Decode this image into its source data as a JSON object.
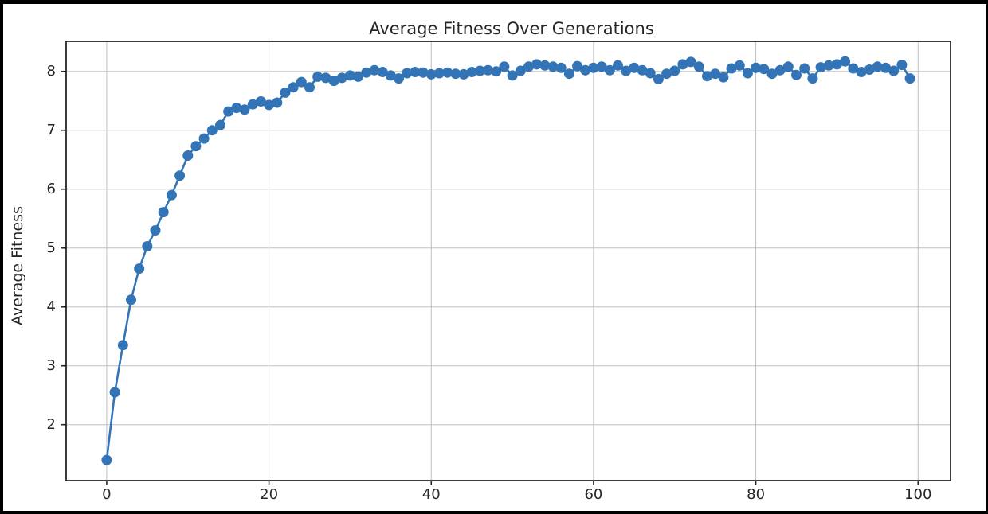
{
  "chart_data": {
    "type": "line",
    "title": "Average Fitness Over Generations",
    "xlabel": "",
    "ylabel": "Average Fitness",
    "legend": null,
    "grid": true,
    "xlim": [
      -5,
      104
    ],
    "ylim": [
      1.05,
      8.51
    ],
    "xticks": [
      0,
      20,
      40,
      60,
      80,
      100
    ],
    "yticks": [
      2,
      3,
      4,
      5,
      6,
      7,
      8
    ],
    "x": [
      0,
      1,
      2,
      3,
      4,
      5,
      6,
      7,
      8,
      9,
      10,
      11,
      12,
      13,
      14,
      15,
      16,
      17,
      18,
      19,
      20,
      21,
      22,
      23,
      24,
      25,
      26,
      27,
      28,
      29,
      30,
      31,
      32,
      33,
      34,
      35,
      36,
      37,
      38,
      39,
      40,
      41,
      42,
      43,
      44,
      45,
      46,
      47,
      48,
      49,
      50,
      51,
      52,
      53,
      54,
      55,
      56,
      57,
      58,
      59,
      60,
      61,
      62,
      63,
      64,
      65,
      66,
      67,
      68,
      69,
      70,
      71,
      72,
      73,
      74,
      75,
      76,
      77,
      78,
      79,
      80,
      81,
      82,
      83,
      84,
      85,
      86,
      87,
      88,
      89,
      90,
      91,
      92,
      93,
      94,
      95,
      96,
      97,
      98,
      99
    ],
    "series": [
      {
        "name": "average_fitness",
        "values": [
          1.4,
          2.55,
          3.35,
          4.12,
          4.65,
          5.03,
          5.3,
          5.61,
          5.9,
          6.23,
          6.57,
          6.73,
          6.86,
          7.0,
          7.09,
          7.32,
          7.38,
          7.35,
          7.44,
          7.49,
          7.43,
          7.47,
          7.64,
          7.73,
          7.82,
          7.73,
          7.91,
          7.89,
          7.84,
          7.89,
          7.93,
          7.91,
          7.98,
          8.02,
          7.99,
          7.93,
          7.88,
          7.97,
          7.99,
          7.98,
          7.95,
          7.97,
          7.98,
          7.96,
          7.95,
          7.99,
          8.01,
          8.02,
          8.0,
          8.08,
          7.93,
          8.01,
          8.08,
          8.12,
          8.1,
          8.08,
          8.06,
          7.96,
          8.09,
          8.02,
          8.06,
          8.08,
          8.02,
          8.1,
          8.01,
          8.06,
          8.02,
          7.97,
          7.87,
          7.96,
          8.01,
          8.12,
          8.16,
          8.08,
          7.92,
          7.96,
          7.9,
          8.05,
          8.1,
          7.97,
          8.06,
          8.04,
          7.96,
          8.02,
          8.08,
          7.94,
          8.05,
          7.88,
          8.07,
          8.1,
          8.12,
          8.17,
          8.05,
          7.99,
          8.03,
          8.08,
          8.06,
          8.01,
          8.11,
          7.88
        ]
      }
    ],
    "colors": {
      "line": "#3274b5",
      "marker": "#3274b5",
      "grid": "#bfbfbf",
      "spine": "#262626",
      "text": "#262626",
      "figure_background": "#ffffff",
      "page_background": "#000000"
    },
    "marker_style": "circle",
    "legend_position": "none"
  }
}
